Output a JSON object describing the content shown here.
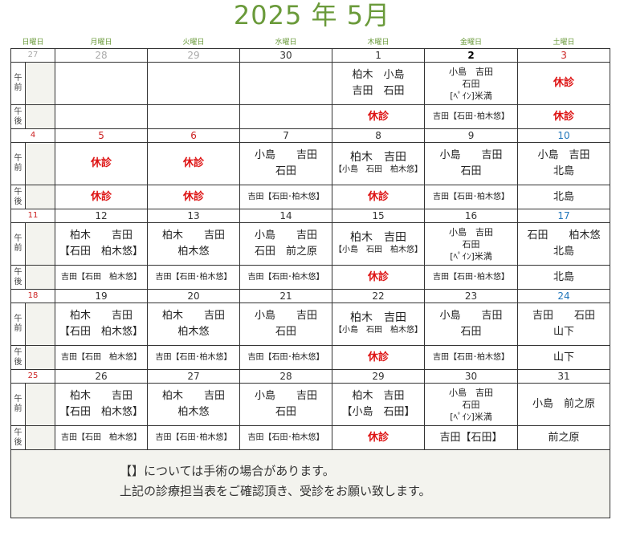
{
  "title": "2025 年 5月",
  "weekdays": [
    "日曜日",
    "月曜日",
    "火曜日",
    "水曜日",
    "木曜日",
    "金曜日",
    "土曜日"
  ],
  "labels": {
    "am": "午\n前",
    "pm": "午\n後"
  },
  "weeks": [
    {
      "dates": [
        "27",
        "28",
        "29",
        "30",
        "1",
        "2",
        "3"
      ],
      "date_styles": [
        "gray",
        "gray",
        "gray",
        "normal",
        "normal",
        "bold",
        "red"
      ],
      "am": [
        "",
        "",
        "",
        "",
        "柏木　小島\n吉田　石田",
        "小島　吉田\n石田\n[ﾍﾟｲﾝ]米満",
        "休診"
      ],
      "pm": [
        "",
        "",
        "",
        "",
        "休診",
        "吉田【石田･柏木悠】",
        "休診"
      ]
    },
    {
      "dates": [
        "4",
        "5",
        "6",
        "7",
        "8",
        "9",
        "10"
      ],
      "date_styles": [
        "red",
        "red",
        "red",
        "normal",
        "normal",
        "normal",
        "blue"
      ],
      "am": [
        "",
        "休診",
        "休診",
        "小島　　吉田\n石田",
        "柏木　吉田\n【小島　石田　柏木悠】",
        "小島　　吉田\n石田",
        "小島　吉田\n北島"
      ],
      "pm": [
        "",
        "休診",
        "休診",
        "吉田【石田･柏木悠】",
        "休診",
        "吉田【石田･柏木悠】",
        "北島"
      ]
    },
    {
      "dates": [
        "11",
        "12",
        "13",
        "14",
        "15",
        "16",
        "17"
      ],
      "date_styles": [
        "red",
        "normal",
        "normal",
        "normal",
        "normal",
        "normal",
        "blue"
      ],
      "am": [
        "",
        "柏木　　吉田\n【石田　柏木悠】",
        "柏木　　吉田\n柏木悠",
        "小島　　吉田\n石田　前之原",
        "柏木　吉田\n【小島　石田　柏木悠】",
        "小島　吉田\n石田\n[ﾍﾟｲﾝ]米満",
        "石田　　柏木悠\n北島"
      ],
      "pm": [
        "",
        "吉田【石田　柏木悠】",
        "吉田【石田･柏木悠】",
        "吉田【石田･柏木悠】",
        "休診",
        "吉田【石田･柏木悠】",
        "北島"
      ]
    },
    {
      "dates": [
        "18",
        "19",
        "20",
        "21",
        "22",
        "23",
        "24"
      ],
      "date_styles": [
        "red",
        "normal",
        "normal",
        "normal",
        "normal",
        "normal",
        "blue"
      ],
      "am": [
        "",
        "柏木　　吉田\n【石田　柏木悠】",
        "柏木　　吉田\n柏木悠",
        "小島　　吉田\n石田",
        "柏木　吉田\n【小島　石田　柏木悠】",
        "小島　　吉田\n石田",
        "吉田　　石田\n山下"
      ],
      "pm": [
        "",
        "吉田【石田　柏木悠】",
        "吉田【石田･柏木悠】",
        "吉田【石田･柏木悠】",
        "休診",
        "吉田【石田･柏木悠】",
        "山下"
      ]
    },
    {
      "dates": [
        "25",
        "26",
        "27",
        "28",
        "29",
        "30",
        "31"
      ],
      "date_styles": [
        "red",
        "normal",
        "normal",
        "normal",
        "normal",
        "normal",
        "normal"
      ],
      "am": [
        "",
        "柏木　　吉田\n【石田　柏木悠】",
        "柏木　　吉田\n柏木悠",
        "小島　　吉田\n石田",
        "柏木　吉田\n【小島　石田】",
        "小島　吉田\n石田\n[ﾍﾟｲﾝ]米満",
        "小島　前之原"
      ],
      "pm": [
        "",
        "吉田【石田　柏木悠】",
        "吉田【石田･柏木悠】",
        "吉田【石田･柏木悠】",
        "休診",
        "吉田【石田】",
        "前之原"
      ]
    }
  ],
  "notes": [
    "【】については手術の場合があります。",
    "上記の診療担当表をご確認頂き、受診をお願い致します。"
  ],
  "colors": {
    "title": "#6a9a3a",
    "closed": "#dd1111",
    "sunday": "#cc2222",
    "saturday": "#2277bb",
    "shade": "#f3f3ee"
  }
}
